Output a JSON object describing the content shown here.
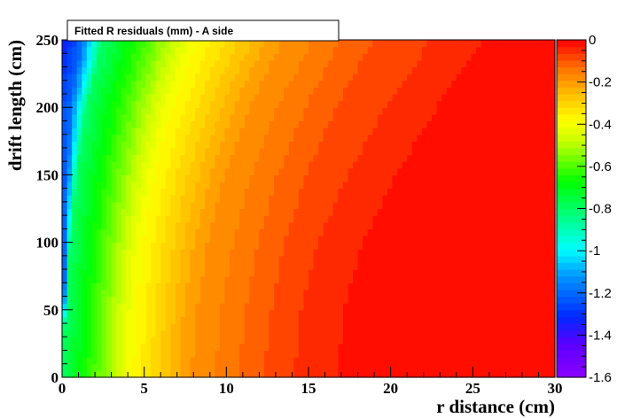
{
  "chart_data": {
    "type": "heatmap",
    "title": "Fitted R residuals (mm) - A side",
    "xlabel": "r distance (cm)",
    "ylabel": "drift length (cm)",
    "xlim": [
      0,
      30
    ],
    "ylim": [
      0,
      250
    ],
    "zlim": [
      -1.6,
      0
    ],
    "x_ticks": [
      "0",
      "5",
      "10",
      "15",
      "20",
      "25",
      "30"
    ],
    "y_ticks": [
      "0",
      "50",
      "100",
      "150",
      "200",
      "250"
    ],
    "z_ticks": [
      "0",
      "-0.2",
      "-0.4",
      "-0.6",
      "-0.8",
      "-1",
      "-1.2",
      "-1.4",
      "-1.6"
    ],
    "grid": false,
    "colormap": "rainbow (ROOT palette: purple → blue → cyan → green → yellow → orange → red)",
    "contours_r_cm_at_drift_length": {
      "drift_length": [
        0,
        50,
        100,
        150,
        200,
        250
      ],
      "z_-1.2": [
        0.0,
        0.1,
        0.2,
        0.3,
        0.5,
        1.2
      ],
      "z_-0.8": [
        0.0,
        0.2,
        0.5,
        0.9,
        1.5,
        2.5
      ],
      "z_-0.4": [
        4.0,
        4.2,
        4.6,
        5.3,
        6.3,
        7.8
      ],
      "z_-0.2": [
        7.5,
        7.8,
        8.5,
        9.5,
        11.0,
        13.0
      ],
      "z_-0.1": [
        12.0,
        12.5,
        13.3,
        14.5,
        16.3,
        18.5
      ],
      "z_-0.05": [
        15.0,
        15.3,
        16.5,
        18.5,
        21.0,
        24.0
      ]
    }
  }
}
